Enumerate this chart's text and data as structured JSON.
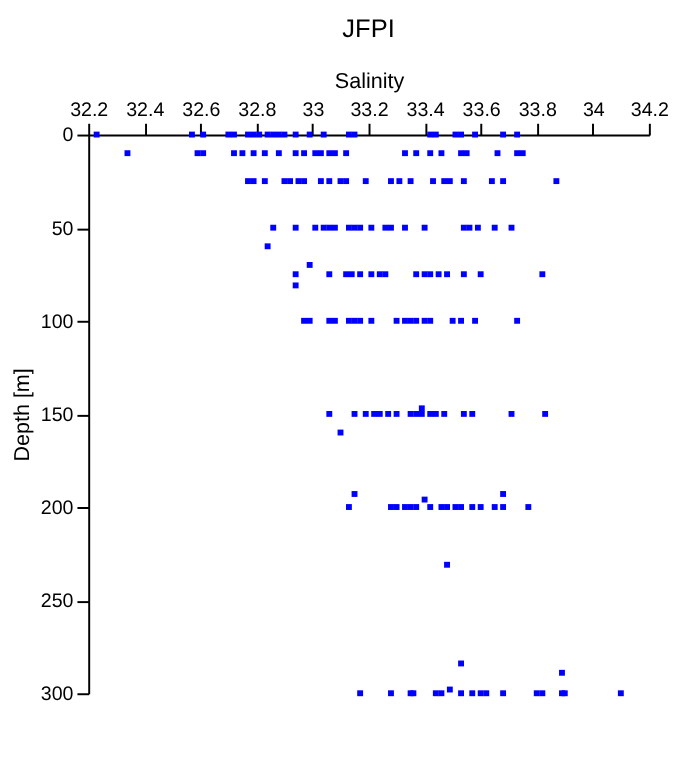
{
  "chart_data": {
    "type": "scatter",
    "title": "JFPI",
    "xlabel": "Salinity",
    "ylabel": "Depth [m]",
    "xlim": [
      32.2,
      34.2
    ],
    "xticks": [
      32.2,
      32.4,
      32.6,
      32.8,
      33,
      33.2,
      33.4,
      33.6,
      33.8,
      34,
      34.2
    ],
    "ylim": [
      300,
      0
    ],
    "yticks": [
      0,
      50,
      100,
      150,
      200,
      250,
      300
    ],
    "grid": false,
    "marker": "square",
    "series": [
      {
        "color": "#0000ff",
        "x": [
          32.23,
          32.57,
          32.61,
          32.7,
          32.72,
          32.77,
          32.79,
          32.81,
          32.84,
          32.86,
          32.88,
          32.9,
          32.94,
          32.99,
          33.04,
          33.13,
          33.15,
          33.42,
          33.44,
          33.51,
          33.53,
          33.58,
          33.68,
          33.73,
          32.34,
          32.59,
          32.61,
          32.72,
          32.75,
          32.79,
          32.83,
          32.88,
          32.94,
          32.97,
          33.01,
          33.03,
          33.06,
          33.08,
          33.12,
          33.33,
          33.37,
          33.42,
          33.46,
          33.53,
          33.55,
          33.66,
          33.73,
          33.75,
          32.77,
          32.79,
          32.83,
          32.9,
          32.92,
          32.95,
          32.97,
          33.03,
          33.06,
          33.1,
          33.12,
          33.19,
          33.28,
          33.31,
          33.35,
          33.43,
          33.47,
          33.49,
          33.54,
          33.64,
          33.68,
          33.87,
          32.86,
          32.94,
          33.01,
          33.04,
          33.06,
          33.08,
          33.13,
          33.15,
          33.17,
          33.21,
          33.26,
          33.28,
          33.33,
          33.4,
          33.54,
          33.56,
          33.59,
          33.65,
          33.71,
          32.84,
          32.99,
          32.94,
          33.06,
          33.12,
          33.14,
          33.17,
          33.21,
          33.24,
          33.26,
          33.37,
          33.4,
          33.42,
          33.45,
          33.48,
          33.54,
          33.6,
          33.82,
          32.94,
          32.97,
          32.99,
          33.06,
          33.08,
          33.13,
          33.15,
          33.17,
          33.21,
          33.3,
          33.33,
          33.35,
          33.37,
          33.4,
          33.42,
          33.5,
          33.53,
          33.58,
          33.73,
          33.06,
          33.15,
          33.19,
          33.22,
          33.24,
          33.27,
          33.3,
          33.35,
          33.37,
          33.39,
          33.42,
          33.44,
          33.47,
          33.54,
          33.57,
          33.71,
          33.83,
          33.39,
          33.1,
          33.15,
          33.4,
          33.68,
          33.13,
          33.28,
          33.3,
          33.33,
          33.35,
          33.37,
          33.42,
          33.46,
          33.48,
          33.51,
          33.53,
          33.57,
          33.6,
          33.65,
          33.68,
          33.77,
          33.48,
          33.53,
          33.89,
          33.49,
          33.17,
          33.28,
          33.35,
          33.36,
          33.44,
          33.46,
          33.53,
          33.57,
          33.6,
          33.62,
          33.68,
          33.8,
          33.82,
          33.89,
          33.9,
          34.1
        ],
        "values": [
          0,
          0,
          0,
          0,
          0,
          0,
          0,
          0,
          0,
          0,
          0,
          0,
          0,
          0,
          0,
          0,
          0,
          0,
          0,
          0,
          0,
          0,
          0,
          0,
          10,
          10,
          10,
          10,
          10,
          10,
          10,
          10,
          10,
          10,
          10,
          10,
          10,
          10,
          10,
          10,
          10,
          10,
          10,
          10,
          10,
          10,
          10,
          10,
          25,
          25,
          25,
          25,
          25,
          25,
          25,
          25,
          25,
          25,
          25,
          25,
          25,
          25,
          25,
          25,
          25,
          25,
          25,
          25,
          25,
          25,
          50,
          50,
          50,
          50,
          50,
          50,
          50,
          50,
          50,
          50,
          50,
          50,
          50,
          50,
          50,
          50,
          50,
          50,
          50,
          60,
          70,
          75,
          75,
          75,
          75,
          75,
          75,
          75,
          75,
          75,
          75,
          75,
          75,
          75,
          75,
          75,
          75,
          81,
          100,
          100,
          100,
          100,
          100,
          100,
          100,
          100,
          100,
          100,
          100,
          100,
          100,
          100,
          100,
          100,
          100,
          100,
          150,
          150,
          150,
          150,
          150,
          150,
          150,
          150,
          150,
          150,
          150,
          150,
          150,
          150,
          150,
          150,
          150,
          147,
          160,
          193,
          196,
          193,
          200,
          200,
          200,
          200,
          200,
          200,
          200,
          200,
          200,
          200,
          200,
          200,
          200,
          200,
          200,
          200,
          231,
          284,
          289,
          298,
          300,
          300,
          300,
          300,
          300,
          300,
          300,
          300,
          300,
          300,
          300,
          300,
          300,
          300,
          300,
          300
        ]
      }
    ]
  }
}
